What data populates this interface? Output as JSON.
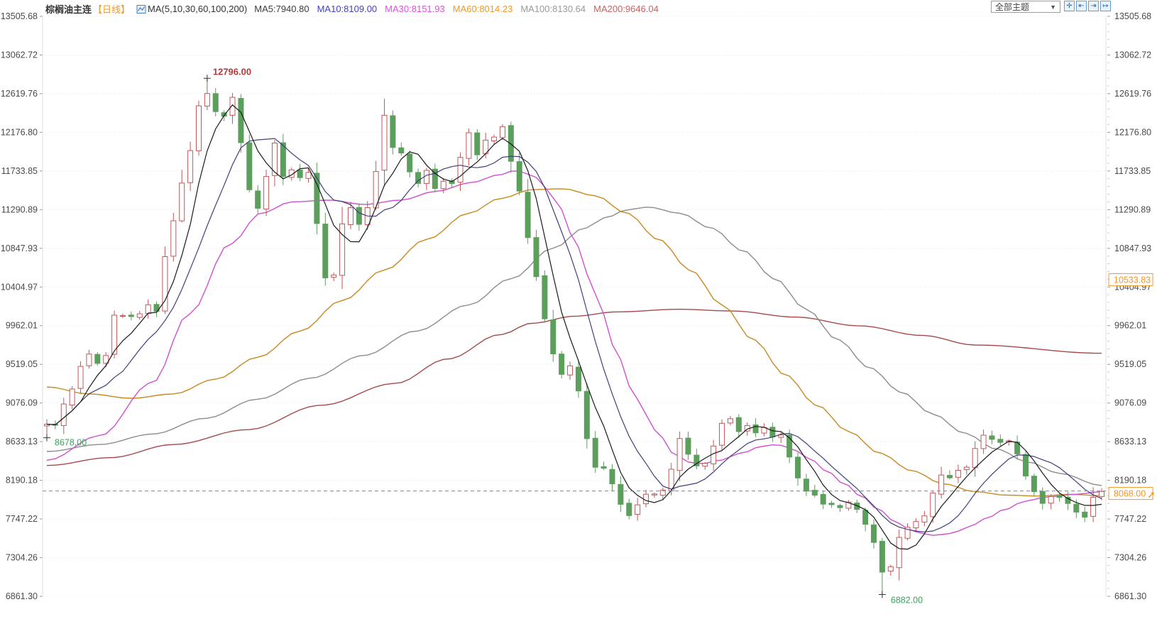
{
  "legend": {
    "instrument": "棕榈油主连",
    "instrument_color": "#333333",
    "period": "【日线】",
    "period_color": "#f0982a",
    "ma_label": "MA(5,10,30,60,100,200)",
    "ma_label_color": "#333333",
    "items": [
      {
        "id": "ma5",
        "label": "MA5:7940.80",
        "color": "#3c3c3c"
      },
      {
        "id": "ma10",
        "label": "MA10:8109.00",
        "color": "#4343c3"
      },
      {
        "id": "ma30",
        "label": "MA30:8151.93",
        "color": "#e34de3"
      },
      {
        "id": "ma60",
        "label": "MA60:8014.23",
        "color": "#f0982a"
      },
      {
        "id": "ma100",
        "label": "MA100:8130.64",
        "color": "#9a9a9a"
      },
      {
        "id": "ma200",
        "label": "MA200:9646.04",
        "color": "#c96262"
      }
    ]
  },
  "controls": {
    "theme_label": "全部主题",
    "dropdown_glyph": "▼",
    "buttons": [
      {
        "id": "fit-view-button",
        "glyph": "✛"
      },
      {
        "id": "pan-left-button",
        "glyph": "⇤"
      },
      {
        "id": "pan-right-button",
        "glyph": "⇥"
      },
      {
        "id": "go-latest-button",
        "glyph": "↦"
      }
    ]
  },
  "chart_data": {
    "type": "candlestick",
    "title": "棕榈油主连 日线",
    "axis_max": 13505.68,
    "axis_min": 6861.3,
    "y_axis_labels": [
      "13505.68",
      "13062.72",
      "12619.76",
      "12176.80",
      "11733.85",
      "11290.89",
      "10847.93",
      "10404.97",
      "9962.01",
      "9519.05",
      "9076.09",
      "8633.13",
      "8190.18",
      "7747.22",
      "7304.26",
      "6861.30"
    ],
    "grid": {
      "style": "dotted",
      "color": "#e8e8e8",
      "show": true
    },
    "candle_count": 126,
    "seed": 1337,
    "up_color": "#c25858",
    "down_color": "#5c9e5c",
    "accent_orange": "#f0982a",
    "close_path": [
      [
        0.0,
        8850
      ],
      [
        0.003,
        8760
      ],
      [
        0.008,
        8820
      ],
      [
        0.015,
        9060
      ],
      [
        0.022,
        9200
      ],
      [
        0.032,
        9500
      ],
      [
        0.042,
        9670
      ],
      [
        0.052,
        9460
      ],
      [
        0.06,
        9800
      ],
      [
        0.066,
        10150
      ],
      [
        0.076,
        10070
      ],
      [
        0.086,
        10115
      ],
      [
        0.096,
        10200
      ],
      [
        0.103,
        10075
      ],
      [
        0.11,
        10680
      ],
      [
        0.12,
        11170
      ],
      [
        0.13,
        11660
      ],
      [
        0.137,
        11985
      ],
      [
        0.143,
        12470
      ],
      [
        0.15,
        12720
      ],
      [
        0.157,
        12310
      ],
      [
        0.164,
        12550
      ],
      [
        0.17,
        12270
      ],
      [
        0.177,
        12600
      ],
      [
        0.184,
        12065
      ],
      [
        0.19,
        11580
      ],
      [
        0.197,
        11210
      ],
      [
        0.204,
        11415
      ],
      [
        0.211,
        11860
      ],
      [
        0.215,
        12065
      ],
      [
        0.221,
        11620
      ],
      [
        0.227,
        11700
      ],
      [
        0.236,
        11740
      ],
      [
        0.242,
        11620
      ],
      [
        0.249,
        11700
      ],
      [
        0.254,
        11250
      ],
      [
        0.261,
        10685
      ],
      [
        0.266,
        10440
      ],
      [
        0.271,
        10520
      ],
      [
        0.276,
        10805
      ],
      [
        0.281,
        11170
      ],
      [
        0.288,
        11295
      ],
      [
        0.295,
        11090
      ],
      [
        0.301,
        11210
      ],
      [
        0.306,
        11335
      ],
      [
        0.313,
        11740
      ],
      [
        0.32,
        12350
      ],
      [
        0.327,
        12025
      ],
      [
        0.334,
        11945
      ],
      [
        0.34,
        11820
      ],
      [
        0.347,
        11700
      ],
      [
        0.354,
        11580
      ],
      [
        0.361,
        11740
      ],
      [
        0.367,
        11540
      ],
      [
        0.374,
        11620
      ],
      [
        0.381,
        11495
      ],
      [
        0.388,
        11780
      ],
      [
        0.394,
        11945
      ],
      [
        0.401,
        12190
      ],
      [
        0.408,
        11945
      ],
      [
        0.415,
        12065
      ],
      [
        0.421,
        12105
      ],
      [
        0.428,
        12145
      ],
      [
        0.435,
        12270
      ],
      [
        0.441,
        11820
      ],
      [
        0.448,
        11495
      ],
      [
        0.455,
        11010
      ],
      [
        0.462,
        10600
      ],
      [
        0.468,
        10240
      ],
      [
        0.475,
        9910
      ],
      [
        0.482,
        9585
      ],
      [
        0.489,
        9400
      ],
      [
        0.493,
        9585
      ],
      [
        0.5,
        9340
      ],
      [
        0.507,
        9100
      ],
      [
        0.513,
        8610
      ],
      [
        0.52,
        8325
      ],
      [
        0.527,
        8365
      ],
      [
        0.534,
        8165
      ],
      [
        0.54,
        8000
      ],
      [
        0.547,
        7880
      ],
      [
        0.554,
        7755
      ],
      [
        0.559,
        7905
      ],
      [
        0.566,
        8040
      ],
      [
        0.573,
        8100
      ],
      [
        0.58,
        8000
      ],
      [
        0.586,
        8080
      ],
      [
        0.593,
        8325
      ],
      [
        0.6,
        8650
      ],
      [
        0.606,
        8490
      ],
      [
        0.613,
        8365
      ],
      [
        0.62,
        8325
      ],
      [
        0.627,
        8405
      ],
      [
        0.633,
        8570
      ],
      [
        0.64,
        8815
      ],
      [
        0.647,
        8935
      ],
      [
        0.653,
        8690
      ],
      [
        0.66,
        8815
      ],
      [
        0.667,
        8855
      ],
      [
        0.674,
        8730
      ],
      [
        0.68,
        8815
      ],
      [
        0.687,
        8690
      ],
      [
        0.694,
        8730
      ],
      [
        0.7,
        8610
      ],
      [
        0.707,
        8365
      ],
      [
        0.714,
        8205
      ],
      [
        0.721,
        8040
      ],
      [
        0.727,
        8000
      ],
      [
        0.734,
        7920
      ],
      [
        0.741,
        7960
      ],
      [
        0.748,
        7905
      ],
      [
        0.754,
        7835
      ],
      [
        0.761,
        7960
      ],
      [
        0.768,
        7855
      ],
      [
        0.775,
        7675
      ],
      [
        0.781,
        7555
      ],
      [
        0.788,
        7310
      ],
      [
        0.795,
        7065
      ],
      [
        0.801,
        7185
      ],
      [
        0.808,
        7510
      ],
      [
        0.815,
        7635
      ],
      [
        0.822,
        7755
      ],
      [
        0.828,
        7675
      ],
      [
        0.835,
        7835
      ],
      [
        0.842,
        8080
      ],
      [
        0.849,
        8285
      ],
      [
        0.855,
        8205
      ],
      [
        0.862,
        8325
      ],
      [
        0.869,
        8245
      ],
      [
        0.875,
        8405
      ],
      [
        0.882,
        8570
      ],
      [
        0.889,
        8690
      ],
      [
        0.896,
        8650
      ],
      [
        0.902,
        8610
      ],
      [
        0.909,
        8690
      ],
      [
        0.916,
        8570
      ],
      [
        0.923,
        8445
      ],
      [
        0.929,
        8245
      ],
      [
        0.936,
        8040
      ],
      [
        0.943,
        7920
      ],
      [
        0.95,
        8000
      ],
      [
        0.956,
        8080
      ],
      [
        0.963,
        7960
      ],
      [
        0.97,
        7905
      ],
      [
        0.977,
        7835
      ],
      [
        0.983,
        7755
      ],
      [
        0.99,
        7960
      ],
      [
        1.0,
        8068
      ]
    ],
    "series": [
      {
        "name": "MA5",
        "color": "#1a1a1a",
        "computed_window": 5,
        "current": 7940.8
      },
      {
        "name": "MA10",
        "color": "#3f3f7a",
        "computed_window": 10,
        "current": 8109.0
      },
      {
        "name": "MA30",
        "color": "#cf4fcf",
        "current": 8151.93,
        "anchors": [
          [
            0.0,
            8420
          ],
          [
            0.05,
            8700
          ],
          [
            0.1,
            9310
          ],
          [
            0.135,
            10100
          ],
          [
            0.174,
            10900
          ],
          [
            0.203,
            11250
          ],
          [
            0.232,
            11380
          ],
          [
            0.268,
            11400
          ],
          [
            0.301,
            11350
          ],
          [
            0.335,
            11400
          ],
          [
            0.369,
            11500
          ],
          [
            0.402,
            11600
          ],
          [
            0.429,
            11690
          ],
          [
            0.444,
            11740
          ],
          [
            0.46,
            11690
          ],
          [
            0.473,
            11550
          ],
          [
            0.487,
            11300
          ],
          [
            0.5,
            10950
          ],
          [
            0.513,
            10550
          ],
          [
            0.527,
            10100
          ],
          [
            0.54,
            9650
          ],
          [
            0.554,
            9250
          ],
          [
            0.567,
            8950
          ],
          [
            0.581,
            8700
          ],
          [
            0.594,
            8500
          ],
          [
            0.608,
            8400
          ],
          [
            0.621,
            8380
          ],
          [
            0.638,
            8420
          ],
          [
            0.658,
            8500
          ],
          [
            0.678,
            8580
          ],
          [
            0.692,
            8600
          ],
          [
            0.705,
            8560
          ],
          [
            0.722,
            8450
          ],
          [
            0.739,
            8300
          ],
          [
            0.756,
            8150
          ],
          [
            0.773,
            8000
          ],
          [
            0.789,
            7850
          ],
          [
            0.806,
            7700
          ],
          [
            0.823,
            7600
          ],
          [
            0.84,
            7560
          ],
          [
            0.857,
            7580
          ],
          [
            0.873,
            7650
          ],
          [
            0.89,
            7750
          ],
          [
            0.907,
            7850
          ],
          [
            0.927,
            7950
          ],
          [
            0.948,
            8000
          ],
          [
            0.975,
            8030
          ],
          [
            1.0,
            8060
          ]
        ]
      },
      {
        "name": "MA60",
        "color": "#c8891f",
        "current": 8014.23,
        "anchors": [
          [
            0.0,
            9260
          ],
          [
            0.04,
            9180
          ],
          [
            0.08,
            9130
          ],
          [
            0.12,
            9180
          ],
          [
            0.16,
            9350
          ],
          [
            0.2,
            9600
          ],
          [
            0.24,
            9900
          ],
          [
            0.28,
            10250
          ],
          [
            0.32,
            10600
          ],
          [
            0.36,
            10950
          ],
          [
            0.4,
            11250
          ],
          [
            0.43,
            11420
          ],
          [
            0.46,
            11520
          ],
          [
            0.49,
            11530
          ],
          [
            0.52,
            11450
          ],
          [
            0.55,
            11250
          ],
          [
            0.58,
            10950
          ],
          [
            0.61,
            10600
          ],
          [
            0.64,
            10200
          ],
          [
            0.67,
            9800
          ],
          [
            0.7,
            9400
          ],
          [
            0.73,
            9050
          ],
          [
            0.76,
            8750
          ],
          [
            0.79,
            8500
          ],
          [
            0.82,
            8300
          ],
          [
            0.85,
            8150
          ],
          [
            0.88,
            8060
          ],
          [
            0.91,
            8020
          ],
          [
            0.94,
            8010
          ],
          [
            0.97,
            8030
          ],
          [
            1.0,
            8014
          ]
        ]
      },
      {
        "name": "MA100",
        "color": "#8c8c8c",
        "current": 8130.64,
        "anchors": [
          [
            0.0,
            8520
          ],
          [
            0.05,
            8600
          ],
          [
            0.1,
            8720
          ],
          [
            0.15,
            8900
          ],
          [
            0.2,
            9120
          ],
          [
            0.25,
            9360
          ],
          [
            0.3,
            9620
          ],
          [
            0.35,
            9900
          ],
          [
            0.4,
            10200
          ],
          [
            0.44,
            10500
          ],
          [
            0.48,
            10850
          ],
          [
            0.51,
            11080
          ],
          [
            0.53,
            11200
          ],
          [
            0.55,
            11290
          ],
          [
            0.57,
            11320
          ],
          [
            0.6,
            11250
          ],
          [
            0.63,
            11080
          ],
          [
            0.66,
            10820
          ],
          [
            0.69,
            10500
          ],
          [
            0.72,
            10150
          ],
          [
            0.75,
            9800
          ],
          [
            0.78,
            9480
          ],
          [
            0.81,
            9200
          ],
          [
            0.84,
            8950
          ],
          [
            0.87,
            8730
          ],
          [
            0.9,
            8550
          ],
          [
            0.93,
            8400
          ],
          [
            0.96,
            8270
          ],
          [
            1.0,
            8131
          ]
        ]
      },
      {
        "name": "MA200",
        "color": "#a44a4a",
        "current": 9646.04,
        "anchors": [
          [
            0.0,
            8360
          ],
          [
            0.06,
            8450
          ],
          [
            0.12,
            8600
          ],
          [
            0.19,
            8770
          ],
          [
            0.26,
            9050
          ],
          [
            0.33,
            9300
          ],
          [
            0.38,
            9580
          ],
          [
            0.43,
            9860
          ],
          [
            0.46,
            9990
          ],
          [
            0.5,
            10070
          ],
          [
            0.54,
            10120
          ],
          [
            0.6,
            10150
          ],
          [
            0.65,
            10130
          ],
          [
            0.71,
            10060
          ],
          [
            0.77,
            9960
          ],
          [
            0.83,
            9850
          ],
          [
            0.88,
            9740
          ],
          [
            1.0,
            9646
          ]
        ]
      }
    ],
    "markers": {
      "high": {
        "f": 0.15,
        "price": 12796.0,
        "label": "12796.00",
        "color": "#b03a3a"
      },
      "low_start": {
        "f": 0.003,
        "price": 8678.0,
        "label": "8678.00",
        "color": "#3aa35c"
      },
      "low": {
        "f": 0.795,
        "price": 6882.0,
        "label": "6882.00",
        "color": "#3aa35c"
      },
      "current": {
        "price": 8068.0,
        "label": "8068.00",
        "line_color": "#4a9ab5",
        "box_color": "#f0982a",
        "arrow_glyph": "➚"
      },
      "right_axis_extra": {
        "price": 10533.83,
        "label": "10533.83",
        "color": "#f0982a"
      }
    }
  }
}
